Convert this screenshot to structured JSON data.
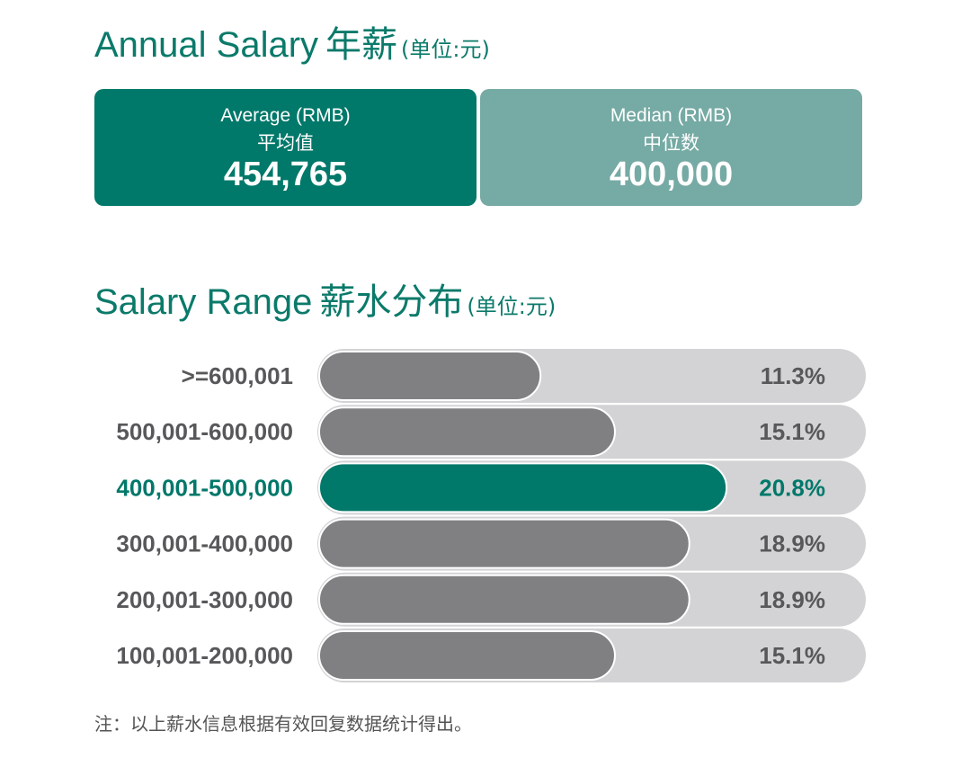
{
  "annual": {
    "title_en": "Annual Salary",
    "title_cn": "年薪",
    "unit": "(单位:元)"
  },
  "cards": {
    "average": {
      "label_en": "Average (RMB)",
      "label_cn": "平均值",
      "value": "454,765"
    },
    "median": {
      "label_en": "Median (RMB)",
      "label_cn": "中位数",
      "value": "400,000"
    }
  },
  "range": {
    "title_en": "Salary Range",
    "title_cn": "薪水分布",
    "unit": "(单位:元)"
  },
  "colors": {
    "accent": "#00786a",
    "median_card": "#76aaa4",
    "bar_gray": "#808083",
    "track": "#d3d3d5",
    "label_gray": "#58585a"
  },
  "chart_data": {
    "type": "bar",
    "orientation": "horizontal",
    "categories": [
      ">=600,001",
      "500,001-600,000",
      "400,001-500,000",
      "300,001-400,000",
      "200,001-300,000",
      "100,001-200,000"
    ],
    "values": [
      11.3,
      15.1,
      20.8,
      18.9,
      18.9,
      15.1
    ],
    "value_labels": [
      "11.3%",
      "15.1%",
      "20.8%",
      "18.9%",
      "18.9%",
      "15.1%"
    ],
    "highlight_index": 2,
    "xlim": [
      0,
      28
    ],
    "grid": false,
    "legend": "none"
  },
  "footnote": "注：以上薪水信息根据有效回复数据统计得出。"
}
